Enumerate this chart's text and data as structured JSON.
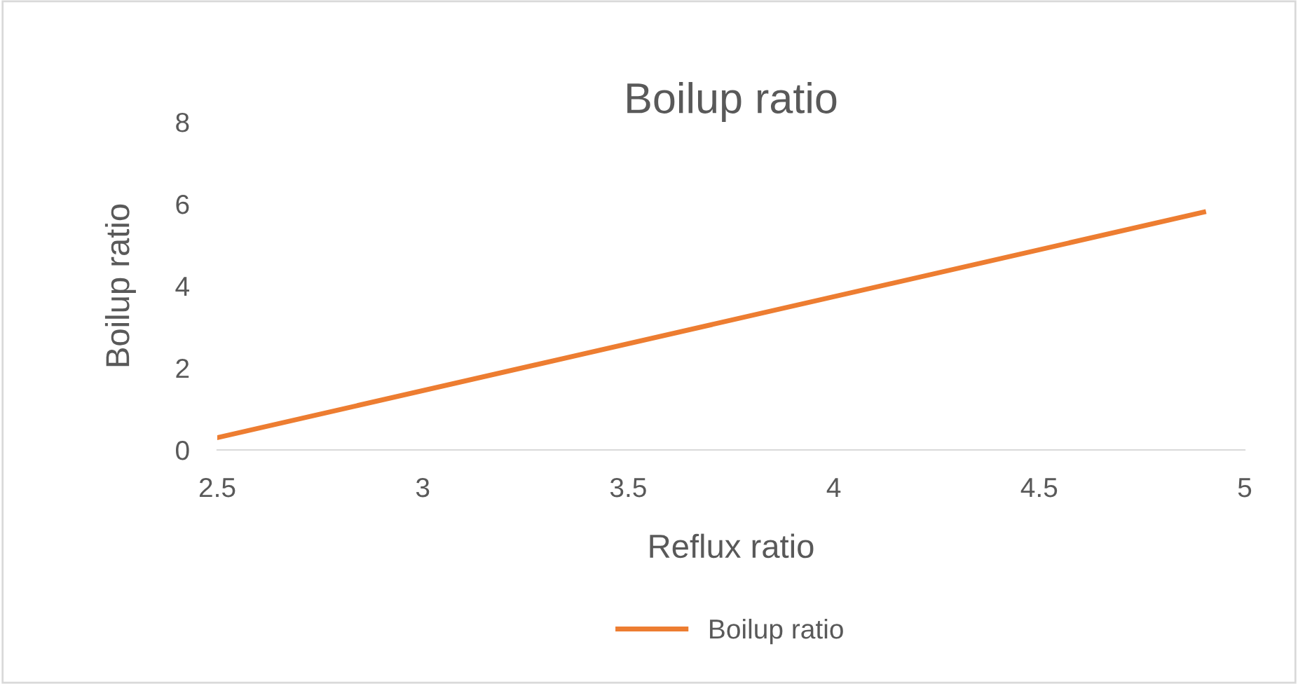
{
  "chart_data": {
    "type": "line",
    "title": "Boilup ratio",
    "xlabel": "Reflux ratio",
    "ylabel": "Boilup ratio",
    "x": [
      2.5,
      4.9
    ],
    "series": [
      {
        "name": "Boilup ratio",
        "color": "#ed7d31",
        "values": [
          0.3,
          5.8
        ]
      }
    ],
    "xlim": [
      2.5,
      5
    ],
    "xticks": [
      2.5,
      3,
      3.5,
      4,
      4.5,
      5
    ],
    "ylim": [
      0,
      8
    ],
    "yticks": [
      0,
      2,
      4,
      6,
      8
    ],
    "grid": false,
    "legend": "bottom",
    "marker": "none",
    "line_style": "solid"
  }
}
